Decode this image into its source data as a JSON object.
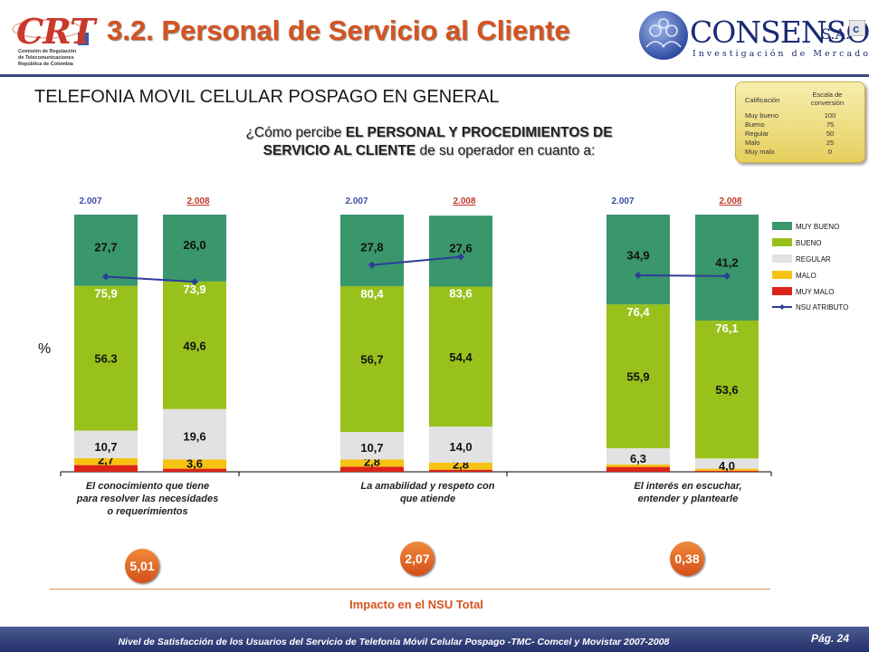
{
  "header": {
    "logo_left": {
      "word": "CRT",
      "lines": [
        "Comisión de Regulación",
        "de Telecomunicaciones",
        "República de Colombia"
      ]
    },
    "title": "3.2. Personal de Servicio al Cliente",
    "logo_right": {
      "word": "CONSENSO",
      "suffix": "S.A.",
      "tagline": "Investigación de Mercados"
    }
  },
  "subtitle": "TELEFONIA MOVIL CELULAR POSPAGO EN GENERAL",
  "question": {
    "pre": "¿Cómo percibe ",
    "bold1": "EL PERSONAL Y PROCEDIMIENTOS DE",
    "bold2": "SERVICIO AL CLIENTE",
    "post": " de su operador en cuanto a:"
  },
  "conversion_table": {
    "col1": "Calificación",
    "col2": "Escala de conversión",
    "rows": [
      {
        "label": "Muy bueno",
        "value": "100"
      },
      {
        "label": "Bueno",
        "value": "75"
      },
      {
        "label": "Regular",
        "value": "50"
      },
      {
        "label": "Malo",
        "value": "25"
      },
      {
        "label": "Muy malo",
        "value": "0"
      }
    ]
  },
  "colors": {
    "muy_bueno": "#3a966b",
    "bueno": "#99c11c",
    "regular": "#e2e2e2",
    "malo": "#f6c312",
    "muy_malo": "#dd2318",
    "nsu_line": "#2d3e9a",
    "year_2007": "#3a4fa0",
    "year_2008": "#c0392b"
  },
  "impact": {
    "label": "Impacto en el NSU Total",
    "values": [
      "5,01",
      "2,07",
      "0,38"
    ]
  },
  "chart_data": {
    "type": "bar",
    "stacked": true,
    "ylabel": "%",
    "ylim": [
      0,
      100
    ],
    "legend": [
      "MUY BUENO",
      "BUENO",
      "REGULAR",
      "MALO",
      "MUY MALO",
      "NSU ATRIBUTO"
    ],
    "legend_position": "right",
    "groups": [
      {
        "category": "El conocimiento que tiene para resolver las necesidades o requerimientos",
        "category_lines": [
          "El conocimiento que tiene",
          "para resolver las necesidades",
          "o requerimientos"
        ],
        "bars": [
          {
            "year": "2.007",
            "muy_malo": 2.6,
            "malo": 2.7,
            "regular": 10.7,
            "bueno": 56.3,
            "muy_bueno": 27.7,
            "nsu": 75.9,
            "labels": {
              "muy_malo": "",
              "malo": "2,7",
              "regular": "10,7",
              "bueno": "56.3",
              "muy_bueno": "27,7",
              "nsu": "75,9"
            }
          },
          {
            "year": "2.008",
            "muy_malo": 1.2,
            "malo": 3.6,
            "regular": 19.6,
            "bueno": 49.6,
            "muy_bueno": 26.0,
            "nsu": 73.9,
            "labels": {
              "muy_malo": "",
              "malo": "3,6",
              "regular": "19,6",
              "bueno": "49,6",
              "muy_bueno": "26,0",
              "nsu": "73,9"
            }
          }
        ]
      },
      {
        "category": "La amabilidad y respeto con que atiende",
        "category_lines": [
          "La amabilidad y respeto con",
          "que atiende"
        ],
        "bars": [
          {
            "year": "2.007",
            "muy_malo": 2.0,
            "malo": 2.8,
            "regular": 10.7,
            "bueno": 56.7,
            "muy_bueno": 27.8,
            "nsu": 80.4,
            "labels": {
              "muy_malo": "",
              "malo": "2,8",
              "regular": "10,7",
              "bueno": "56,7",
              "muy_bueno": "27,8",
              "nsu": "80,4"
            }
          },
          {
            "year": "2.008",
            "muy_malo": 0.8,
            "malo": 2.8,
            "regular": 14.0,
            "bueno": 54.4,
            "muy_bueno": 27.6,
            "nsu": 83.6,
            "labels": {
              "muy_malo": "",
              "malo": "2,8",
              "regular": "14,0",
              "bueno": "54,4",
              "muy_bueno": "27,6",
              "nsu": "83,6"
            }
          }
        ]
      },
      {
        "category": "El interés en escuchar, entender y plantearle",
        "category_lines": [
          "El interés en escuchar,",
          "entender y plantearle"
        ],
        "bars": [
          {
            "year": "2.007",
            "muy_malo": 1.9,
            "malo": 1.0,
            "regular": 6.3,
            "bueno": 55.9,
            "muy_bueno": 34.9,
            "nsu": 76.4,
            "labels": {
              "muy_malo": "",
              "malo": "",
              "regular": "6,3",
              "bueno": "55,9",
              "muy_bueno": "34,9",
              "nsu": "76,4"
            }
          },
          {
            "year": "2.008",
            "muy_malo": 0.4,
            "malo": 0.8,
            "regular": 4.0,
            "bueno": 53.6,
            "muy_bueno": 41.2,
            "nsu": 76.1,
            "labels": {
              "muy_malo": "",
              "malo": "",
              "regular": "4,0",
              "bueno": "53,6",
              "muy_bueno": "41,2",
              "nsu": "76,1"
            }
          }
        ]
      }
    ]
  },
  "footer": {
    "text": "Nivel de Satisfacción de los Usuarios del Servicio de Telefonía Móvil Celular Pospago -TMC- Comcel y Movistar 2007-2008",
    "page": "Pág. 24"
  }
}
